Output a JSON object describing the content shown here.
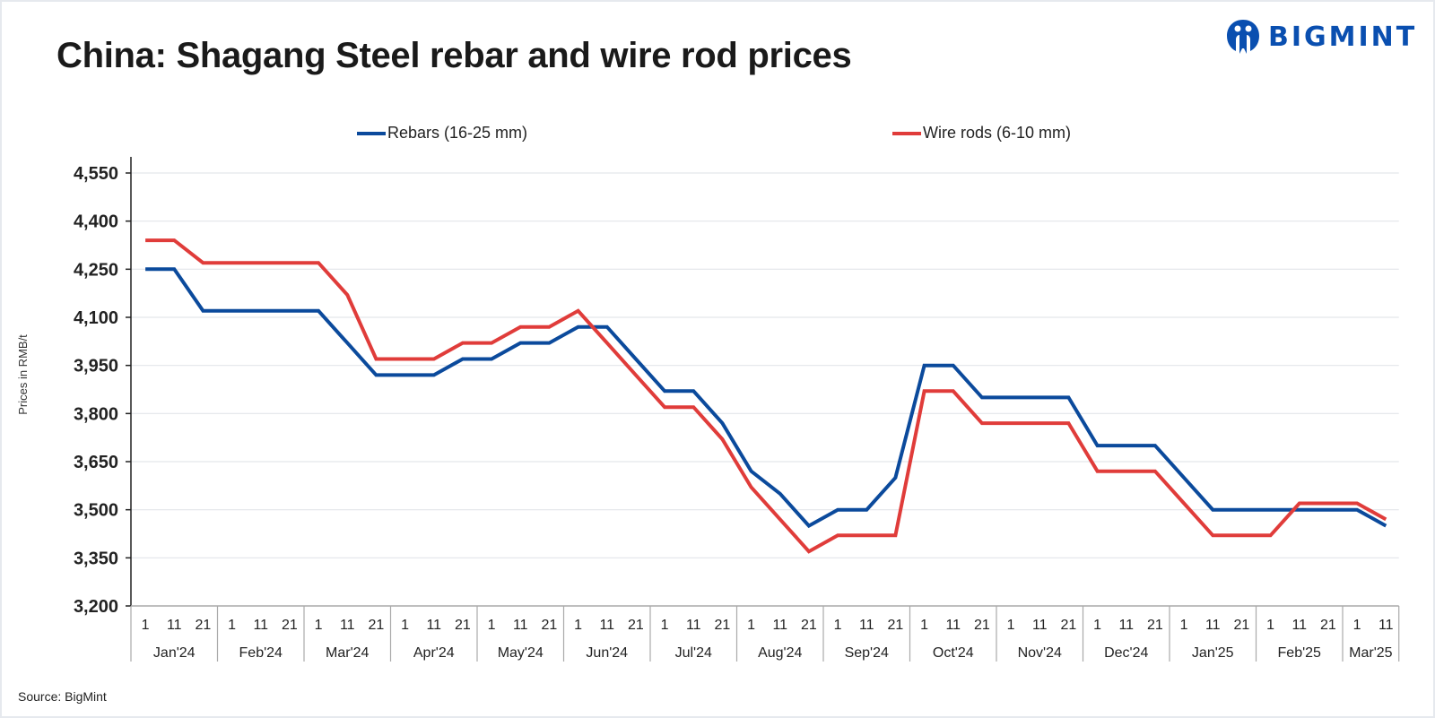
{
  "header": {
    "title": "China: Shagang Steel rebar and wire rod prices",
    "logo_text": "BIGMINT",
    "brand_color": "#0a4fb0"
  },
  "footer": {
    "source": "Source: BigMint"
  },
  "chart_data": {
    "type": "line",
    "title": "China: Shagang Steel rebar and wire rod prices",
    "xlabel": "",
    "ylabel": "Prices in RMB/t",
    "ylim": [
      3200,
      4550
    ],
    "yticks": [
      3200,
      3350,
      3500,
      3650,
      3800,
      3950,
      4100,
      4250,
      4400,
      4550
    ],
    "ytick_labels": [
      "3,200",
      "3,350",
      "3,500",
      "3,650",
      "3,800",
      "3,950",
      "4,100",
      "4,250",
      "4,400",
      "4,550"
    ],
    "grid": true,
    "legend_position": "top",
    "months": [
      {
        "label": "Jan'24",
        "days": [
          "1",
          "11",
          "21"
        ]
      },
      {
        "label": "Feb'24",
        "days": [
          "1",
          "11",
          "21"
        ]
      },
      {
        "label": "Mar'24",
        "days": [
          "1",
          "11",
          "21"
        ]
      },
      {
        "label": "Apr'24",
        "days": [
          "1",
          "11",
          "21"
        ]
      },
      {
        "label": "May'24",
        "days": [
          "1",
          "11",
          "21"
        ]
      },
      {
        "label": "Jun'24",
        "days": [
          "1",
          "11",
          "21"
        ]
      },
      {
        "label": "Jul'24",
        "days": [
          "1",
          "11",
          "21"
        ]
      },
      {
        "label": "Aug'24",
        "days": [
          "1",
          "11",
          "21"
        ]
      },
      {
        "label": "Sep'24",
        "days": [
          "1",
          "11",
          "21"
        ]
      },
      {
        "label": "Oct'24",
        "days": [
          "1",
          "11",
          "21"
        ]
      },
      {
        "label": "Nov'24",
        "days": [
          "1",
          "11",
          "21"
        ]
      },
      {
        "label": "Dec'24",
        "days": [
          "1",
          "11",
          "21"
        ]
      },
      {
        "label": "Jan'25",
        "days": [
          "1",
          "11",
          "21"
        ]
      },
      {
        "label": "Feb'25",
        "days": [
          "1",
          "11",
          "21"
        ]
      },
      {
        "label": "Mar'25",
        "days": [
          "1",
          "11"
        ]
      }
    ],
    "series": [
      {
        "name": "Rebars (16-25 mm)",
        "color": "#0b4a9c",
        "values": [
          4250,
          4250,
          4120,
          4120,
          4120,
          4120,
          4120,
          4020,
          3920,
          3920,
          3920,
          3970,
          3970,
          4020,
          4020,
          4070,
          4070,
          3970,
          3870,
          3870,
          3770,
          3620,
          3550,
          3450,
          3500,
          3500,
          3600,
          3950,
          3950,
          3850,
          3850,
          3850,
          3850,
          3700,
          3700,
          3700,
          3600,
          3500,
          3500,
          3500,
          3500,
          3500,
          3500,
          3450
        ]
      },
      {
        "name": "Wire rods (6-10 mm)",
        "color": "#e03c3a",
        "values": [
          4340,
          4340,
          4270,
          4270,
          4270,
          4270,
          4270,
          4170,
          3970,
          3970,
          3970,
          4020,
          4020,
          4070,
          4070,
          4120,
          4020,
          3920,
          3820,
          3820,
          3720,
          3570,
          3470,
          3370,
          3420,
          3420,
          3420,
          3870,
          3870,
          3770,
          3770,
          3770,
          3770,
          3620,
          3620,
          3620,
          3520,
          3420,
          3420,
          3420,
          3520,
          3520,
          3520,
          3470
        ]
      }
    ]
  }
}
